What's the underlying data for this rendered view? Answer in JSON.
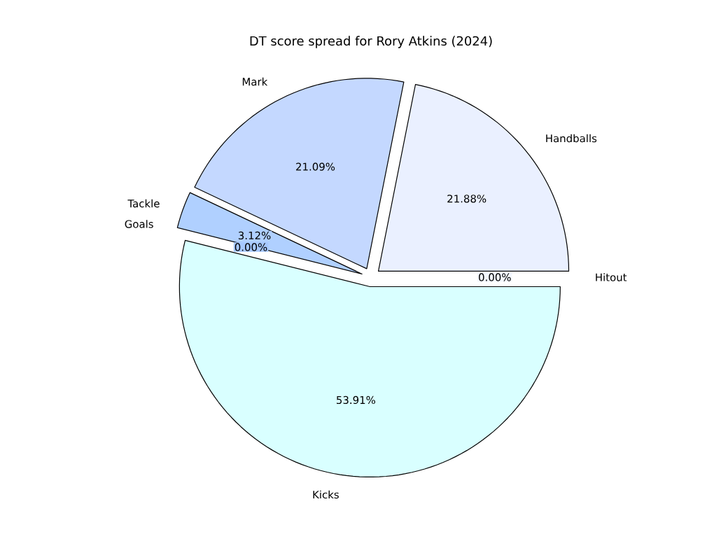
{
  "chart_data": {
    "type": "pie",
    "title": "DT score spread for Rory Atkins (2024)",
    "categories": [
      "Hitout",
      "Handballs",
      "Mark",
      "Tackle",
      "Goals",
      "Kicks"
    ],
    "values": [
      0.0,
      21.88,
      21.09,
      3.12,
      0.0,
      53.91
    ],
    "value_labels": [
      "0.00%",
      "21.88%",
      "21.09%",
      "3.12%",
      "0.00%",
      "53.91%"
    ],
    "colors": [
      "#f4f8ff",
      "#eaf0ff",
      "#c4d8ff",
      "#b0d0ff",
      "#a6c8ff",
      "#d9ffff"
    ]
  }
}
